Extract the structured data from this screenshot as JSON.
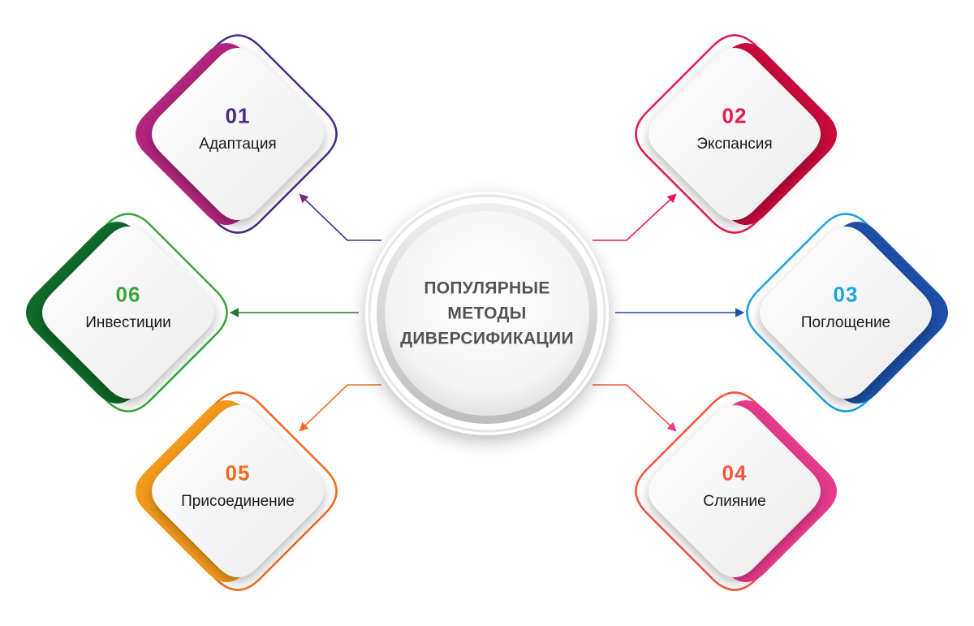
{
  "center": {
    "title_lines": [
      "ПОПУЛЯРНЫЕ",
      "МЕТОДЫ",
      "ДИВЕРСИФИКАЦИИ"
    ]
  },
  "items": [
    {
      "number": "01",
      "label": "Адаптация",
      "color": "#4a2a8a",
      "accent": "#b3247e"
    },
    {
      "number": "02",
      "label": "Экспансия",
      "color": "#e8194f",
      "accent": "#c80a3c"
    },
    {
      "number": "03",
      "label": "Поглощение",
      "color": "#1aa3e0",
      "accent": "#1e4fa8"
    },
    {
      "number": "04",
      "label": "Слияние",
      "color": "#f2543c",
      "accent": "#e83a8c"
    },
    {
      "number": "05",
      "label": "Присоединение",
      "color": "#f26a1b",
      "accent": "#f49a1a"
    },
    {
      "number": "06",
      "label": "Инвестиции",
      "color": "#3aa63a",
      "accent": "#0f6a2a"
    }
  ]
}
